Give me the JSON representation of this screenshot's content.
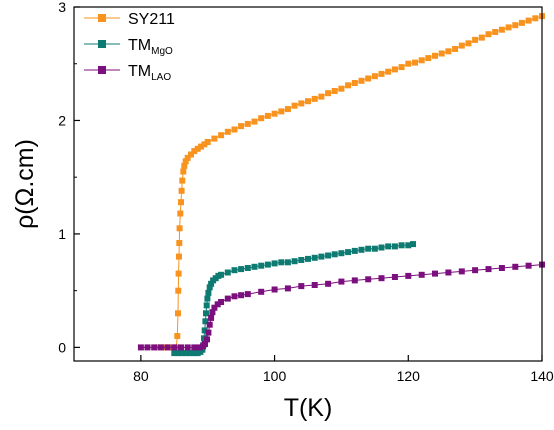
{
  "chart_data": {
    "type": "scatter",
    "title": "",
    "xlabel": "T(K)",
    "ylabel": "ρ(Ω.cm)",
    "xlim": [
      70,
      140
    ],
    "ylim": [
      -0.12,
      3.0
    ],
    "x_ticks": [
      80,
      100,
      120,
      140
    ],
    "y_ticks": [
      0,
      1,
      2,
      3
    ],
    "grid": false,
    "legend_placement": "top-left",
    "series": [
      {
        "name": "SY211",
        "name_base": "SY211",
        "name_sub": "",
        "color": "#F7931E",
        "marker": "square",
        "connected": true,
        "points": [
          [
            82.4,
            0.0
          ],
          [
            83.0,
            0.0
          ],
          [
            83.6,
            0.0
          ],
          [
            84.2,
            0.0
          ],
          [
            84.8,
            0.0
          ],
          [
            85.3,
            0.0
          ],
          [
            85.45,
            0.1
          ],
          [
            85.55,
            0.3
          ],
          [
            85.6,
            0.5
          ],
          [
            85.65,
            0.65
          ],
          [
            85.7,
            0.8
          ],
          [
            85.75,
            0.92
          ],
          [
            85.8,
            1.05
          ],
          [
            85.9,
            1.18
          ],
          [
            86.0,
            1.28
          ],
          [
            86.1,
            1.38
          ],
          [
            86.2,
            1.47
          ],
          [
            86.35,
            1.55
          ],
          [
            86.5,
            1.6
          ],
          [
            86.7,
            1.64
          ],
          [
            87.0,
            1.67
          ],
          [
            87.5,
            1.7
          ],
          [
            88.0,
            1.73
          ],
          [
            88.5,
            1.75
          ],
          [
            89.0,
            1.77
          ],
          [
            89.5,
            1.79
          ],
          [
            90.0,
            1.81
          ],
          [
            91.0,
            1.84
          ],
          [
            92.0,
            1.87
          ],
          [
            93.0,
            1.9
          ],
          [
            94.0,
            1.92
          ],
          [
            95.0,
            1.95
          ],
          [
            96.0,
            1.97
          ],
          [
            97.0,
            1.99
          ],
          [
            98.0,
            2.02
          ],
          [
            99.0,
            2.04
          ],
          [
            100.0,
            2.06
          ],
          [
            101.0,
            2.08
          ],
          [
            102.0,
            2.1
          ],
          [
            103.0,
            2.13
          ],
          [
            104.0,
            2.15
          ],
          [
            105.0,
            2.17
          ],
          [
            106.0,
            2.19
          ],
          [
            107.0,
            2.21
          ],
          [
            108.0,
            2.24
          ],
          [
            109.0,
            2.26
          ],
          [
            110.0,
            2.28
          ],
          [
            111.0,
            2.31
          ],
          [
            112.0,
            2.33
          ],
          [
            113.0,
            2.35
          ],
          [
            114.0,
            2.37
          ],
          [
            115.0,
            2.39
          ],
          [
            116.0,
            2.41
          ],
          [
            117.0,
            2.43
          ],
          [
            118.0,
            2.45
          ],
          [
            119.0,
            2.47
          ],
          [
            120.0,
            2.5
          ],
          [
            121.0,
            2.51
          ],
          [
            122.0,
            2.53
          ],
          [
            123.0,
            2.55
          ],
          [
            124.0,
            2.57
          ],
          [
            125.0,
            2.59
          ],
          [
            126.0,
            2.61
          ],
          [
            127.0,
            2.63
          ],
          [
            128.0,
            2.66
          ],
          [
            129.0,
            2.68
          ],
          [
            130.0,
            2.71
          ],
          [
            131.0,
            2.73
          ],
          [
            132.0,
            2.76
          ],
          [
            133.0,
            2.78
          ],
          [
            134.0,
            2.8
          ],
          [
            135.0,
            2.82
          ],
          [
            136.0,
            2.84
          ],
          [
            137.0,
            2.86
          ],
          [
            138.0,
            2.88
          ],
          [
            139.0,
            2.9
          ],
          [
            140.0,
            2.92
          ]
        ]
      },
      {
        "name": "TMMgO",
        "name_base": "TM",
        "name_sub": "MgO",
        "color": "#0E7B72",
        "marker": "square",
        "connected": true,
        "points": [
          [
            85.0,
            -0.05
          ],
          [
            85.6,
            -0.05
          ],
          [
            86.2,
            -0.05
          ],
          [
            86.8,
            -0.05
          ],
          [
            87.4,
            -0.05
          ],
          [
            88.0,
            -0.05
          ],
          [
            88.5,
            -0.05
          ],
          [
            88.9,
            -0.04
          ],
          [
            89.2,
            -0.02
          ],
          [
            89.35,
            0.02
          ],
          [
            89.45,
            0.08
          ],
          [
            89.55,
            0.15
          ],
          [
            89.65,
            0.23
          ],
          [
            89.75,
            0.3
          ],
          [
            89.85,
            0.37
          ],
          [
            89.95,
            0.43
          ],
          [
            90.1,
            0.48
          ],
          [
            90.3,
            0.53
          ],
          [
            90.5,
            0.56
          ],
          [
            90.8,
            0.59
          ],
          [
            91.2,
            0.61
          ],
          [
            91.6,
            0.63
          ],
          [
            92.0,
            0.64
          ],
          [
            93.0,
            0.66
          ],
          [
            94.0,
            0.68
          ],
          [
            95.0,
            0.69
          ],
          [
            96.0,
            0.7
          ],
          [
            97.0,
            0.71
          ],
          [
            98.0,
            0.72
          ],
          [
            99.0,
            0.73
          ],
          [
            100.0,
            0.74
          ],
          [
            101.0,
            0.75
          ],
          [
            102.0,
            0.75
          ],
          [
            103.0,
            0.76
          ],
          [
            104.0,
            0.77
          ],
          [
            105.0,
            0.78
          ],
          [
            106.0,
            0.79
          ],
          [
            107.0,
            0.8
          ],
          [
            108.0,
            0.81
          ],
          [
            109.0,
            0.82
          ],
          [
            110.0,
            0.83
          ],
          [
            111.0,
            0.84
          ],
          [
            112.0,
            0.85
          ],
          [
            113.0,
            0.86
          ],
          [
            114.0,
            0.87
          ],
          [
            115.0,
            0.87
          ],
          [
            116.0,
            0.88
          ],
          [
            117.0,
            0.89
          ],
          [
            118.0,
            0.89
          ],
          [
            119.0,
            0.9
          ],
          [
            120.0,
            0.9
          ],
          [
            120.7,
            0.91
          ]
        ]
      },
      {
        "name": "TMLAO",
        "name_base": "TM",
        "name_sub": "LAO",
        "color": "#7B0F7E",
        "marker": "square",
        "connected": true,
        "points": [
          [
            80.0,
            0.0
          ],
          [
            81.0,
            0.0
          ],
          [
            82.0,
            0.0
          ],
          [
            83.0,
            0.0
          ],
          [
            84.0,
            0.0
          ],
          [
            85.0,
            0.0
          ],
          [
            86.0,
            0.0
          ],
          [
            87.0,
            0.0
          ],
          [
            88.0,
            0.0
          ],
          [
            88.8,
            0.0
          ],
          [
            89.3,
            0.01
          ],
          [
            89.6,
            0.03
          ],
          [
            89.9,
            0.07
          ],
          [
            90.1,
            0.13
          ],
          [
            90.3,
            0.2
          ],
          [
            90.5,
            0.26
          ],
          [
            90.7,
            0.31
          ],
          [
            91.0,
            0.35
          ],
          [
            91.5,
            0.38
          ],
          [
            92.0,
            0.4
          ],
          [
            93.0,
            0.43
          ],
          [
            94.0,
            0.45
          ],
          [
            95.0,
            0.46
          ],
          [
            96.0,
            0.47
          ],
          [
            98.0,
            0.49
          ],
          [
            100.0,
            0.51
          ],
          [
            102.0,
            0.52
          ],
          [
            104.0,
            0.54
          ],
          [
            106.0,
            0.55
          ],
          [
            108.0,
            0.56
          ],
          [
            110.0,
            0.58
          ],
          [
            112.0,
            0.59
          ],
          [
            114.0,
            0.6
          ],
          [
            116.0,
            0.61
          ],
          [
            118.0,
            0.62
          ],
          [
            120.0,
            0.63
          ],
          [
            122.0,
            0.64
          ],
          [
            124.0,
            0.65
          ],
          [
            126.0,
            0.66
          ],
          [
            128.0,
            0.67
          ],
          [
            130.0,
            0.68
          ],
          [
            132.0,
            0.69
          ],
          [
            134.0,
            0.7
          ],
          [
            136.0,
            0.71
          ],
          [
            138.0,
            0.72
          ],
          [
            140.0,
            0.73
          ]
        ]
      }
    ]
  }
}
